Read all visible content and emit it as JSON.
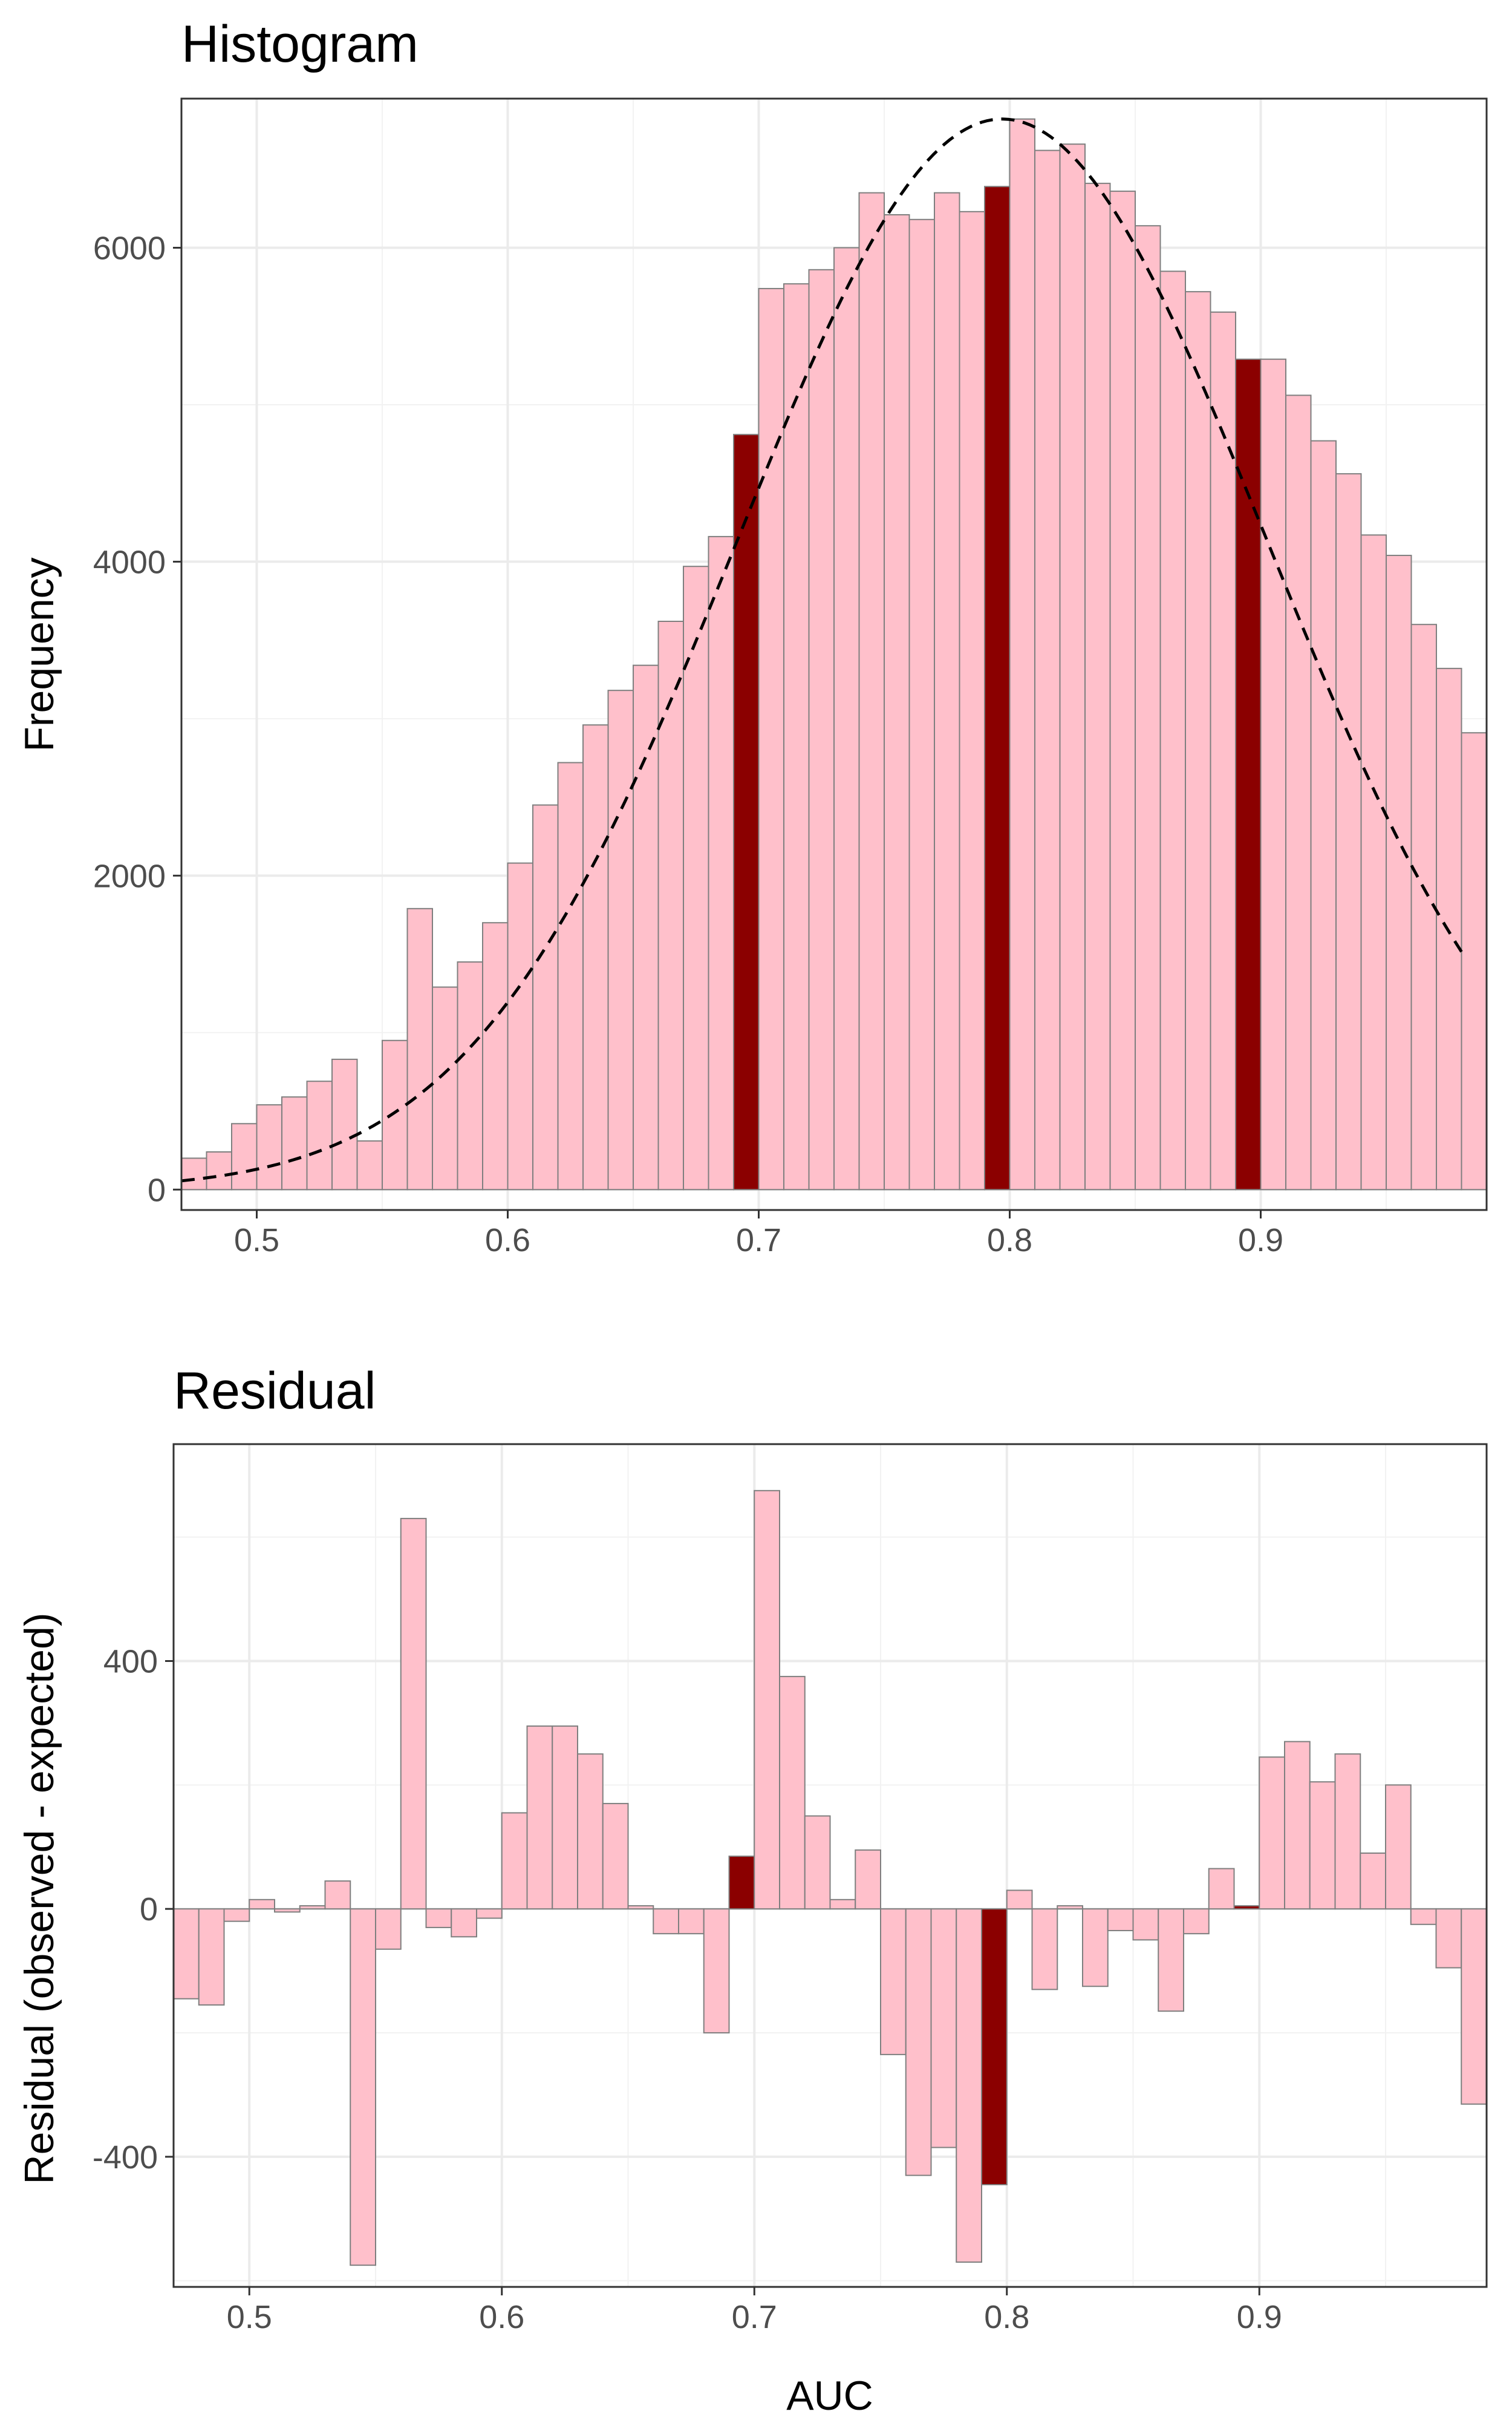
{
  "charts": [
    {
      "type": "bar",
      "title": "Histogram",
      "ylabel": "Frequency",
      "xlim": [
        0.47,
        0.99
      ],
      "ylim": [
        -130,
        6950
      ],
      "x_ticks": [
        0.5,
        0.6,
        0.7,
        0.8,
        0.9
      ],
      "x_tick_labels": [
        "0.5",
        "0.6",
        "0.7",
        "0.8",
        "0.9"
      ],
      "y_ticks": [
        0,
        2000,
        4000,
        6000
      ],
      "y_tick_labels": [
        "0",
        "2000",
        "4000",
        "6000"
      ],
      "grid": true,
      "bin_width": 0.01,
      "bin_centers": [
        0.475,
        0.485,
        0.495,
        0.505,
        0.515,
        0.525,
        0.535,
        0.545,
        0.555,
        0.565,
        0.575,
        0.585,
        0.595,
        0.605,
        0.615,
        0.625,
        0.635,
        0.645,
        0.655,
        0.665,
        0.675,
        0.685,
        0.695,
        0.705,
        0.715,
        0.725,
        0.735,
        0.745,
        0.755,
        0.765,
        0.775,
        0.785,
        0.795,
        0.805,
        0.815,
        0.825,
        0.835,
        0.845,
        0.855,
        0.865,
        0.875,
        0.885,
        0.895,
        0.905,
        0.915,
        0.925,
        0.935,
        0.945,
        0.955,
        0.965,
        0.975,
        0.985
      ],
      "values": [
        200,
        240,
        420,
        540,
        590,
        690,
        830,
        310,
        950,
        1790,
        1290,
        1450,
        1700,
        2080,
        2450,
        2720,
        2960,
        3180,
        3340,
        3620,
        3970,
        4160,
        4810,
        5740,
        5770,
        5860,
        6000,
        6350,
        6210,
        6180,
        6350,
        6230,
        6390,
        6820,
        6620,
        6660,
        6410,
        6360,
        6140,
        5850,
        5720,
        5590,
        5290,
        5290,
        5060,
        4770,
        4560,
        4170,
        4040,
        3600,
        3320,
        2910
      ],
      "highlight_bins": [
        22,
        32,
        42
      ],
      "fit_curve": {
        "style": "dashed",
        "mean": 0.797,
        "sd": 0.1055,
        "peak": 6820,
        "x_range": [
          0.47,
          0.98
        ]
      },
      "colors": {
        "bar_fill": "#ffc0cb",
        "highlight_fill": "#8b0000",
        "bar_outline": "#7f7f7f",
        "curve": "#000000"
      }
    },
    {
      "type": "bar",
      "title": "Residual",
      "xlabel": "AUC",
      "ylabel": "Residual (observed - expected)",
      "xlim": [
        0.47,
        0.99
      ],
      "ylim": [
        -610,
        750
      ],
      "x_ticks": [
        0.5,
        0.6,
        0.7,
        0.8,
        0.9
      ],
      "x_tick_labels": [
        "0.5",
        "0.6",
        "0.7",
        "0.8",
        "0.9"
      ],
      "y_ticks": [
        -400,
        0,
        400
      ],
      "y_tick_labels": [
        "-400",
        "0",
        "400"
      ],
      "grid": true,
      "bin_width": 0.01,
      "bin_centers": [
        0.475,
        0.485,
        0.495,
        0.505,
        0.515,
        0.525,
        0.535,
        0.545,
        0.555,
        0.565,
        0.575,
        0.585,
        0.595,
        0.605,
        0.615,
        0.625,
        0.635,
        0.645,
        0.655,
        0.665,
        0.675,
        0.685,
        0.695,
        0.705,
        0.715,
        0.725,
        0.735,
        0.745,
        0.755,
        0.765,
        0.775,
        0.785,
        0.795,
        0.805,
        0.815,
        0.825,
        0.835,
        0.845,
        0.855,
        0.865,
        0.875,
        0.885,
        0.895,
        0.905,
        0.915,
        0.925,
        0.935,
        0.945,
        0.955,
        0.965,
        0.975,
        0.985
      ],
      "values": [
        -145,
        -155,
        -20,
        15,
        -5,
        5,
        45,
        -575,
        -65,
        630,
        -30,
        -45,
        -15,
        155,
        295,
        295,
        250,
        170,
        5,
        -40,
        -40,
        -200,
        85,
        675,
        375,
        150,
        15,
        95,
        -235,
        -430,
        -385,
        -570,
        -445,
        30,
        -130,
        5,
        -125,
        -35,
        -50,
        -165,
        -40,
        65,
        5,
        245,
        270,
        205,
        250,
        90,
        200,
        -25,
        -95,
        -315
      ],
      "highlight_bins": [
        22,
        32,
        42
      ],
      "colors": {
        "bar_fill": "#ffc0cb",
        "highlight_fill": "#8b0000",
        "bar_outline": "#7f7f7f"
      }
    }
  ]
}
